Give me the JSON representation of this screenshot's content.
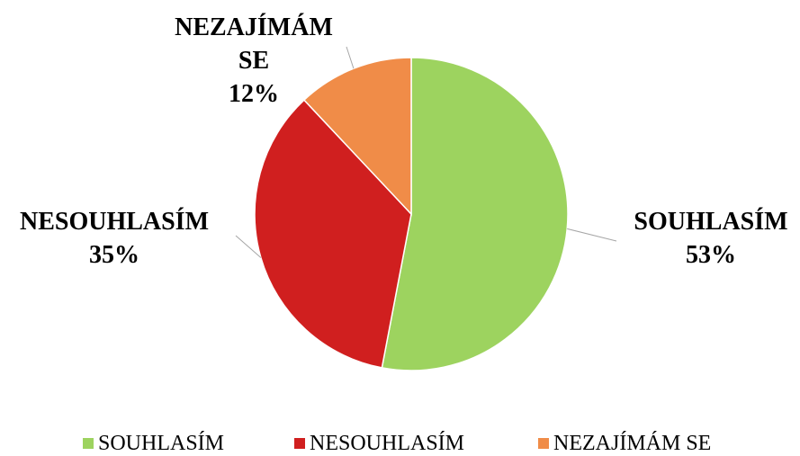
{
  "chart_data": {
    "type": "pie",
    "categories": [
      "SOUHLASÍM",
      "NESOUHLASÍM",
      "NEZAJÍMÁM SE"
    ],
    "values": [
      53,
      35,
      12
    ],
    "value_labels": [
      "53%",
      "35%",
      "12%"
    ],
    "colors": [
      "#9dd35f",
      "#d01f1f",
      "#f08c48"
    ],
    "legend": "bottom"
  }
}
